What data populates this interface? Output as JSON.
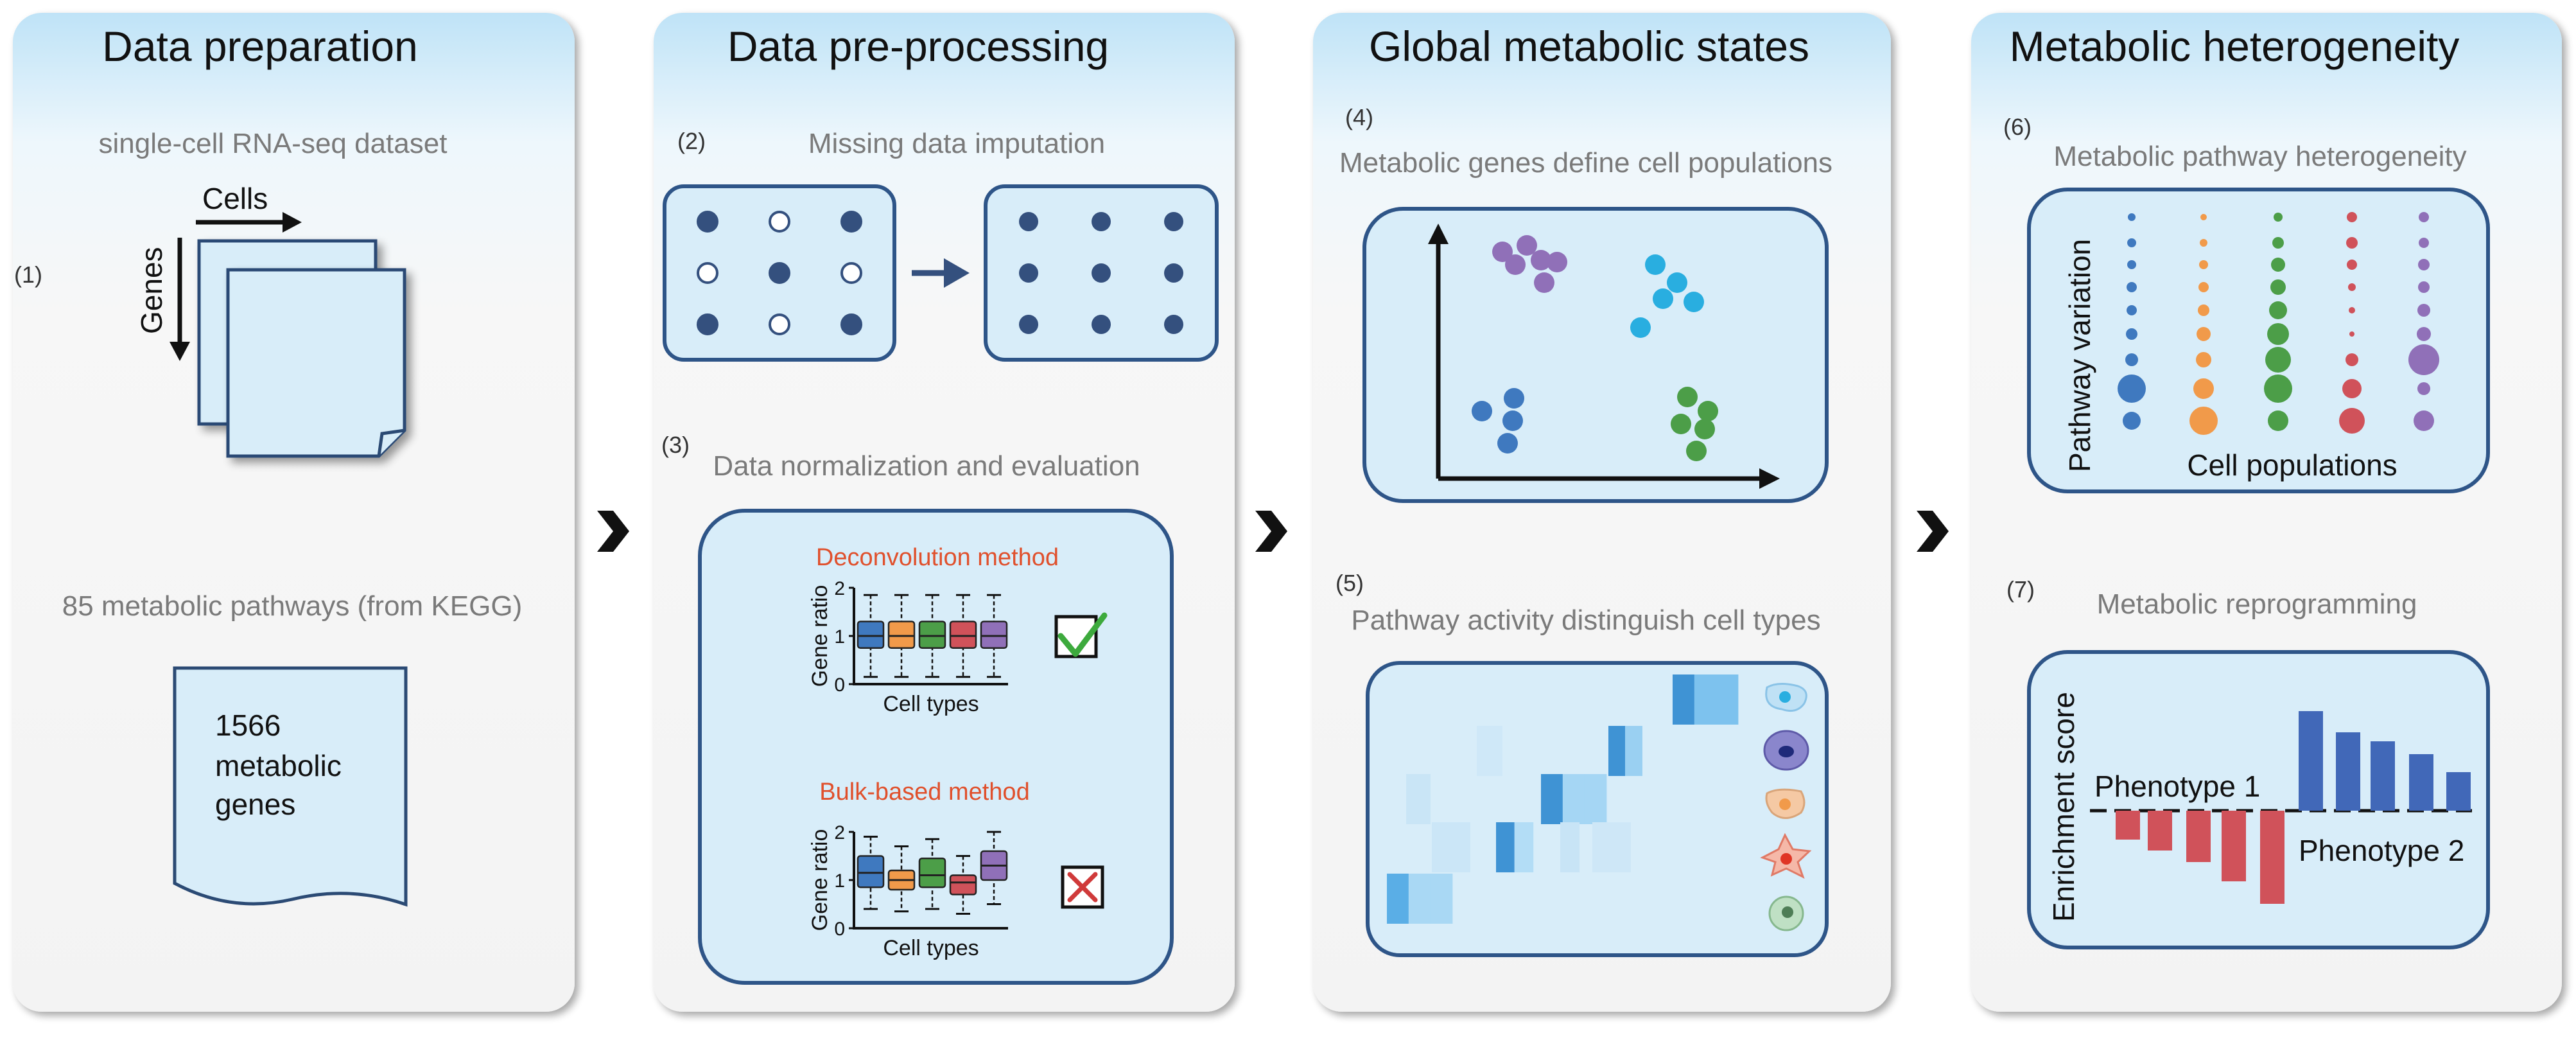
{
  "panels": [
    {
      "title": "Data preparation"
    },
    {
      "title": "Data pre-processing"
    },
    {
      "title": "Global metabolic states"
    },
    {
      "title": "Metabolic heterogeneity"
    }
  ],
  "prep": {
    "step1": "(1)",
    "dataset": "single-cell RNA-seq dataset",
    "cells": "Cells",
    "genes": "Genes",
    "pathways": "85 metabolic pathways (from KEGG)",
    "doc_line1": "1566",
    "doc_line2": "metabolic",
    "doc_line3": "genes"
  },
  "pre": {
    "step2": "(2)",
    "imputation": "Missing data imputation",
    "step3": "(3)",
    "normalization": "Data normalization and evaluation",
    "deconv": "Deconvolution method",
    "bulk": "Bulk-based method",
    "gene_ratio": "Gene ratio",
    "cell_types": "Cell types",
    "ticks": [
      "0",
      "1",
      "2"
    ]
  },
  "global": {
    "step4": "(4)",
    "define": "Metabolic genes define cell populations",
    "step5": "(5)",
    "distinguish": "Pathway activity distinguish cell types"
  },
  "hetero": {
    "step6": "(6)",
    "pathway_het": "Metabolic pathway heterogeneity",
    "pathway_variation": "Pathway variation",
    "cell_populations": "Cell populations",
    "step7": "(7)",
    "reprogramming": "Metabolic reprogramming",
    "enrichment": "Enrichment score",
    "phenotype1": "Phenotype 1",
    "phenotype2": "Phenotype 2"
  },
  "colors": {
    "navy": "#2e5588",
    "dot_blue": "#34507e",
    "box_fill": "#dff0fb",
    "blue": "#3f79bf",
    "orange": "#f19a4a",
    "green": "#4c9e48",
    "red": "#d0525a",
    "purple": "#9070b8",
    "cyan": "#29aee0",
    "deconv_red": "#e0502c"
  }
}
